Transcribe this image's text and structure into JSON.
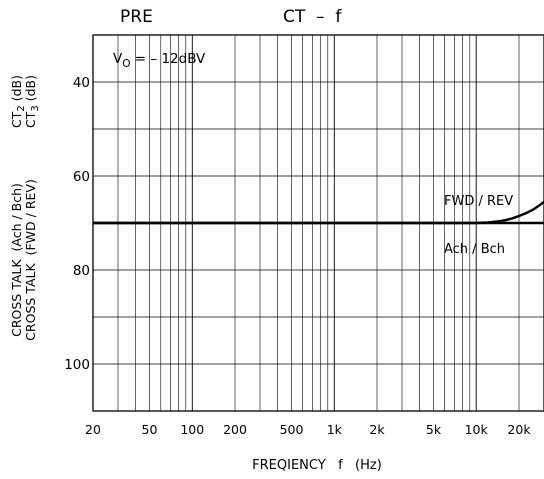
{
  "header": {
    "left": "PRE",
    "center": "CT  –  f"
  },
  "chart_data": {
    "type": "line",
    "title": "CT  –  f",
    "xlabel": "FREQIENCY   f   (Hz)",
    "ylabel_lines": [
      "CROSS TALK  (Ach / Bch)",
      "CROSS TALK  (FWD / REV)"
    ],
    "ct_labels": [
      {
        "main": "CT",
        "sub": "2",
        "unit": "(dB)"
      },
      {
        "main": "CT",
        "sub": "3",
        "unit": "(dB)"
      }
    ],
    "condition": {
      "main": "V",
      "sub": "O",
      "rest": " = – 12dBV"
    },
    "x_scale": "log",
    "xlim": [
      20,
      30000
    ],
    "ylim": [
      110,
      30
    ],
    "y_inverted": true,
    "x_ticks": [
      {
        "value": 20,
        "label": "20"
      },
      {
        "value": 50,
        "label": "50"
      },
      {
        "value": 100,
        "label": "100"
      },
      {
        "value": 200,
        "label": "200"
      },
      {
        "value": 500,
        "label": "500"
      },
      {
        "value": 1000,
        "label": "1k"
      },
      {
        "value": 2000,
        "label": "2k"
      },
      {
        "value": 5000,
        "label": "5k"
      },
      {
        "value": 10000,
        "label": "10k"
      },
      {
        "value": 20000,
        "label": "20k"
      }
    ],
    "y_ticks": [
      40,
      60,
      80,
      100
    ],
    "grid": true,
    "series": [
      {
        "name": "FWD / REV",
        "x": [
          20,
          100,
          1000,
          5000,
          10000,
          12000,
          14000,
          16000,
          18000,
          20000,
          22000,
          25000,
          28000,
          30000
        ],
        "y": [
          70,
          70,
          70,
          70,
          70,
          69.9,
          69.7,
          69.4,
          69.0,
          68.5,
          68.0,
          67.2,
          66.2,
          65.5
        ]
      },
      {
        "name": "Ach / Bch",
        "x": [
          20,
          100,
          1000,
          10000,
          30000
        ],
        "y": [
          70,
          70,
          70,
          70,
          70
        ]
      }
    ]
  }
}
